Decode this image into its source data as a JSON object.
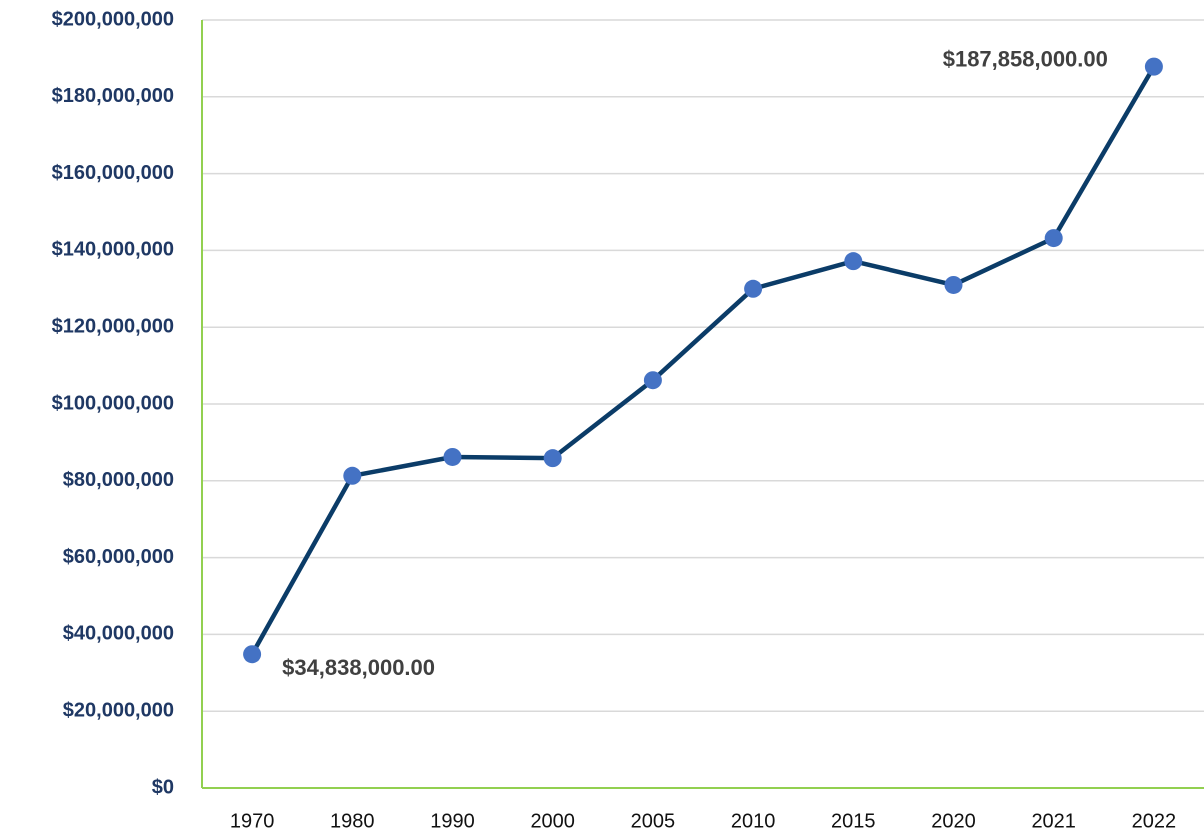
{
  "chart_data": {
    "type": "line",
    "categories": [
      "1970",
      "1980",
      "1990",
      "2000",
      "2005",
      "2010",
      "2015",
      "2020",
      "2021",
      "2022"
    ],
    "series": [
      {
        "color": "#0b3c68",
        "marker_color": "#4472c4",
        "values": [
          34838000,
          81300000,
          86200000,
          85900000,
          106200000,
          130000000,
          137200000,
          131000000,
          143200000,
          187858000
        ],
        "value_labels": [
          "$34,838,000.00",
          null,
          null,
          null,
          null,
          null,
          null,
          null,
          null,
          "$187,858,000.00"
        ]
      }
    ],
    "ylim": [
      0,
      200000000
    ],
    "yticks": [
      {
        "value": 0,
        "label": "$0"
      },
      {
        "value": 20000000,
        "label": "$20,000,000"
      },
      {
        "value": 40000000,
        "label": "$40,000,000"
      },
      {
        "value": 60000000,
        "label": "$60,000,000"
      },
      {
        "value": 80000000,
        "label": "$80,000,000"
      },
      {
        "value": 100000000,
        "label": "$100,000,000"
      },
      {
        "value": 120000000,
        "label": "$120,000,000"
      },
      {
        "value": 140000000,
        "label": "$140,000,000"
      },
      {
        "value": 160000000,
        "label": "$160,000,000"
      },
      {
        "value": 180000000,
        "label": "$180,000,000"
      },
      {
        "value": 200000000,
        "label": "$200,000,000"
      }
    ],
    "grid": true
  }
}
